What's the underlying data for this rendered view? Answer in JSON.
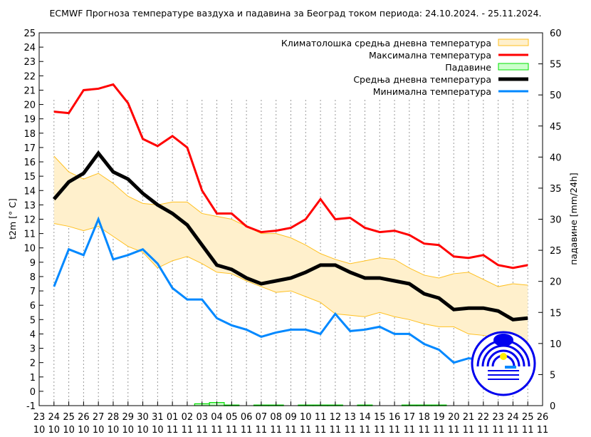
{
  "chart_data": {
    "type": "line",
    "title": "ECMWF Прогноза температуре ваздуха и падавина за Београд током периода: 24.10.2024. - 25.11.2024.",
    "ylabel": "t2m [° C]",
    "y2label": "падавине [mm/24h]",
    "ylim": [
      -1,
      25
    ],
    "y2lim": [
      0,
      60
    ],
    "grid": "vertical dotted lines at each day",
    "legend_placement": "top-right",
    "x_ticks": [
      [
        "23",
        "10"
      ],
      [
        "24",
        "10"
      ],
      [
        "25",
        "10"
      ],
      [
        "26",
        "10"
      ],
      [
        "27",
        "10"
      ],
      [
        "28",
        "10"
      ],
      [
        "29",
        "10"
      ],
      [
        "30",
        "10"
      ],
      [
        "31",
        "10"
      ],
      [
        "01",
        "11"
      ],
      [
        "02",
        "11"
      ],
      [
        "03",
        "11"
      ],
      [
        "04",
        "11"
      ],
      [
        "05",
        "11"
      ],
      [
        "06",
        "11"
      ],
      [
        "07",
        "11"
      ],
      [
        "08",
        "11"
      ],
      [
        "09",
        "11"
      ],
      [
        "10",
        "11"
      ],
      [
        "11",
        "11"
      ],
      [
        "12",
        "11"
      ],
      [
        "13",
        "11"
      ],
      [
        "14",
        "11"
      ],
      [
        "15",
        "11"
      ],
      [
        "16",
        "11"
      ],
      [
        "17",
        "11"
      ],
      [
        "18",
        "11"
      ],
      [
        "19",
        "11"
      ],
      [
        "20",
        "11"
      ],
      [
        "21",
        "11"
      ],
      [
        "22",
        "11"
      ],
      [
        "23",
        "11"
      ],
      [
        "24",
        "11"
      ],
      [
        "25",
        "11"
      ],
      [
        "26",
        "11"
      ]
    ],
    "y_ticks": [
      -1,
      0,
      1,
      2,
      3,
      4,
      5,
      6,
      7,
      8,
      9,
      10,
      11,
      12,
      13,
      14,
      15,
      16,
      17,
      18,
      19,
      20,
      21,
      22,
      23,
      24,
      25
    ],
    "y2_ticks": [
      0,
      5,
      10,
      15,
      20,
      25,
      30,
      35,
      40,
      45,
      50,
      55,
      60
    ],
    "x": [
      "24.10",
      "25.10",
      "26.10",
      "27.10",
      "28.10",
      "29.10",
      "30.10",
      "31.10",
      "01.11",
      "02.11",
      "03.11",
      "04.11",
      "05.11",
      "06.11",
      "07.11",
      "08.11",
      "09.11",
      "10.11",
      "11.11",
      "12.11",
      "13.11",
      "14.11",
      "15.11",
      "16.11",
      "17.11",
      "18.11",
      "19.11",
      "20.11",
      "21.11",
      "22.11",
      "23.11",
      "24.11",
      "25.11"
    ],
    "series": [
      {
        "name": "Климатолошка средња дневна температура",
        "kind": "band",
        "color": "#ffc020",
        "fill": "#fff0cc",
        "upper": [
          16.4,
          15.3,
          14.8,
          15.2,
          14.5,
          13.6,
          13.1,
          13.0,
          13.2,
          13.2,
          12.4,
          12.2,
          12.0,
          11.5,
          11.0,
          11.0,
          10.7,
          10.2,
          9.6,
          9.2,
          8.9,
          9.1,
          9.3,
          9.2,
          8.6,
          8.1,
          7.9,
          8.2,
          8.3,
          7.8,
          7.3,
          7.5,
          7.4
        ],
        "lower": [
          11.7,
          11.5,
          11.2,
          11.5,
          10.8,
          10.1,
          9.7,
          8.6,
          9.1,
          9.4,
          8.9,
          8.3,
          8.2,
          7.7,
          7.3,
          6.9,
          7.0,
          6.6,
          6.2,
          5.4,
          5.3,
          5.2,
          5.5,
          5.2,
          5.0,
          4.7,
          4.5,
          4.5,
          4.0,
          3.9,
          3.7,
          3.6,
          3.5
        ]
      },
      {
        "name": "Максимална температура",
        "kind": "line",
        "color": "#ff0000",
        "values": [
          19.5,
          19.4,
          21.0,
          21.1,
          21.4,
          20.1,
          17.6,
          17.1,
          17.8,
          17.0,
          14.0,
          12.4,
          12.4,
          11.5,
          11.1,
          11.2,
          11.4,
          12.0,
          13.4,
          12.0,
          12.1,
          11.4,
          11.1,
          11.2,
          10.9,
          10.3,
          10.2,
          9.4,
          9.3,
          9.5,
          8.8,
          8.6,
          8.8
        ]
      },
      {
        "name": "Падавине",
        "kind": "bar",
        "axis": "right",
        "color": "#00e000",
        "fill": "#ccffcc",
        "values": [
          0,
          0,
          0,
          0,
          0,
          0,
          0,
          0,
          0,
          0,
          0.3,
          0.5,
          0.1,
          0,
          0.1,
          0.1,
          0,
          0.1,
          0.1,
          0.1,
          0,
          0.1,
          0,
          0,
          0.1,
          0.1,
          0.1,
          0,
          0,
          0,
          0,
          0,
          0
        ]
      },
      {
        "name": "Средња дневна температура",
        "kind": "line",
        "color": "#000000",
        "values": [
          13.4,
          14.6,
          15.2,
          16.6,
          15.3,
          14.8,
          13.8,
          13.0,
          12.4,
          11.6,
          10.2,
          8.8,
          8.5,
          7.9,
          7.5,
          7.7,
          7.9,
          8.3,
          8.8,
          8.8,
          8.3,
          7.9,
          7.9,
          7.7,
          7.5,
          6.8,
          6.5,
          5.7,
          5.8,
          5.8,
          5.6,
          5.0,
          5.1
        ]
      },
      {
        "name": "Минимална температура",
        "kind": "line",
        "color": "#0088ff",
        "values": [
          7.3,
          9.9,
          9.5,
          12.0,
          9.2,
          9.5,
          9.9,
          8.9,
          7.2,
          6.4,
          6.4,
          5.1,
          4.6,
          4.3,
          3.8,
          4.1,
          4.3,
          4.3,
          4.0,
          5.4,
          4.2,
          4.3,
          4.5,
          4.0,
          4.0,
          3.3,
          2.9,
          2.0,
          2.3,
          2.2,
          2.0,
          1.9,
          1.9
        ]
      }
    ]
  },
  "logo": {
    "text": "РХМЗ Србије",
    "color": "#0000ee"
  }
}
